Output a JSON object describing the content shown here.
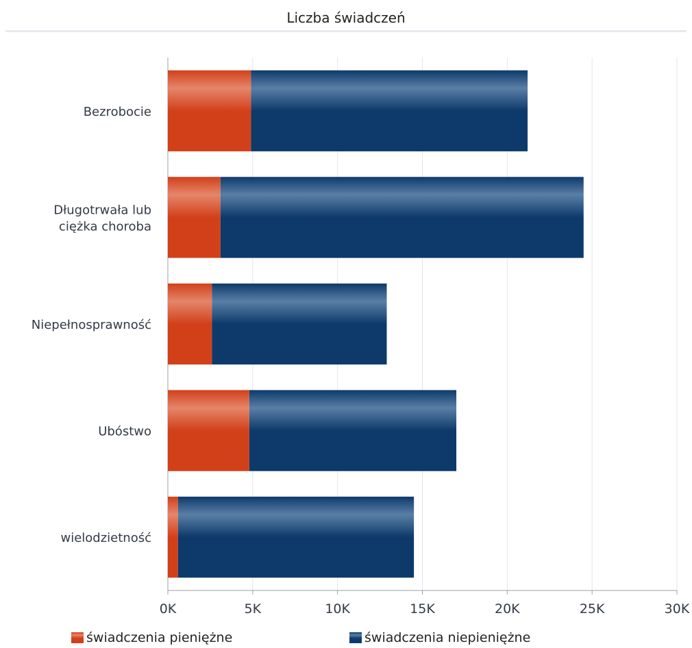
{
  "chart_data": {
    "type": "bar",
    "orientation": "horizontal",
    "stacked": true,
    "title": "Liczba świadczeń",
    "categories": [
      "Bezrobocie",
      "Długotrwała lub\nciężka choroba",
      "Niepełnosprawność",
      "Ubóstwo",
      "wielodzietność"
    ],
    "series": [
      {
        "name": "świadczenia pieniężne",
        "color": "#d2401a",
        "values": [
          4900,
          3100,
          2600,
          4800,
          600
        ]
      },
      {
        "name": "świadczenia niepieniężne",
        "color": "#0d3a6b",
        "values": [
          16300,
          21400,
          10300,
          12200,
          13900
        ]
      }
    ],
    "xlim": [
      0,
      30000
    ],
    "xticks": [
      "0K",
      "5K",
      "10K",
      "15K",
      "20K",
      "25K",
      "30K"
    ],
    "grid": true,
    "legend_position": "bottom"
  }
}
